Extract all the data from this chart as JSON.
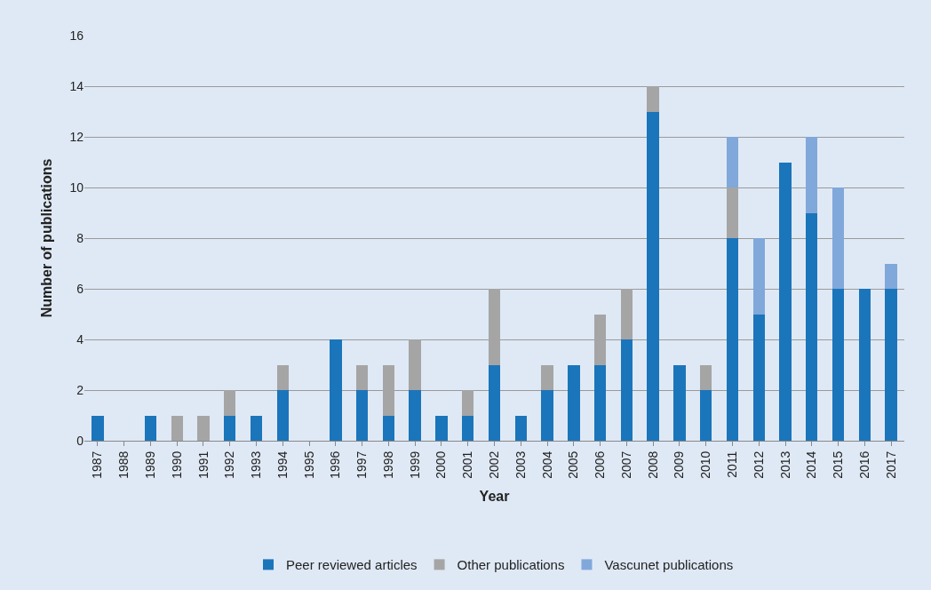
{
  "chart_data": {
    "type": "bar",
    "stacked": true,
    "xlabel": "Year",
    "ylabel": "Number of publications",
    "categories": [
      "1987",
      "1988",
      "1989",
      "1990",
      "1991",
      "1992",
      "1993",
      "1994",
      "1995",
      "1996",
      "1997",
      "1998",
      "1999",
      "2000",
      "2001",
      "2002",
      "2003",
      "2004",
      "2005",
      "2006",
      "2007",
      "2008",
      "2009",
      "2010",
      "2011",
      "2012",
      "2013",
      "2014",
      "2015",
      "2016",
      "2017"
    ],
    "series": [
      {
        "name": "Peer reviewed articles",
        "color": "#1b75bb",
        "values": [
          1,
          0,
          1,
          0,
          0,
          1,
          1,
          2,
          0,
          4,
          2,
          1,
          2,
          1,
          1,
          3,
          1,
          2,
          3,
          3,
          4,
          13,
          3,
          2,
          8,
          5,
          11,
          9,
          6,
          6,
          6
        ]
      },
      {
        "name": "Other publications",
        "color": "#a5a5a5",
        "values": [
          0,
          0,
          0,
          1,
          1,
          1,
          0,
          1,
          0,
          0,
          1,
          2,
          2,
          0,
          1,
          3,
          0,
          1,
          0,
          2,
          2,
          1,
          0,
          1,
          2,
          0,
          0,
          0,
          0,
          0,
          0
        ]
      },
      {
        "name": "Vascunet publications",
        "color": "#80a8da",
        "values": [
          0,
          0,
          0,
          0,
          0,
          0,
          0,
          0,
          0,
          0,
          0,
          0,
          0,
          0,
          0,
          0,
          0,
          0,
          0,
          0,
          0,
          0,
          0,
          0,
          2,
          3,
          0,
          3,
          4,
          0,
          1
        ]
      }
    ],
    "ylim": [
      0,
      16
    ],
    "yticks": [
      0,
      2,
      4,
      6,
      8,
      10,
      12,
      14,
      16
    ],
    "grid": "y",
    "legend": "bottom"
  }
}
